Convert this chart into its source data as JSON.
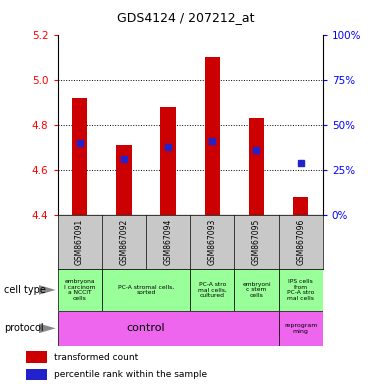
{
  "title": "GDS4124 / 207212_at",
  "samples": [
    "GSM867091",
    "GSM867092",
    "GSM867094",
    "GSM867093",
    "GSM867095",
    "GSM867096"
  ],
  "bar_tops": [
    4.92,
    4.71,
    4.88,
    5.1,
    4.83,
    4.48
  ],
  "bar_bottom": 4.4,
  "blue_y": [
    4.72,
    4.65,
    4.7,
    4.73,
    4.69,
    4.63
  ],
  "ylim_left": [
    4.4,
    5.2
  ],
  "ylim_right": [
    0,
    100
  ],
  "yticks_left": [
    4.4,
    4.6,
    4.8,
    5.0,
    5.2
  ],
  "yticks_right": [
    0,
    25,
    50,
    75,
    100
  ],
  "bar_color": "#cc0000",
  "blue_color": "#2222cc",
  "cell_type_data": [
    {
      "start": 0,
      "end": 1,
      "label": "embryona\nl carcinom\na NCCIT\ncells",
      "color": "#99ff99"
    },
    {
      "start": 1,
      "end": 3,
      "label": "PC-A stromal cells,\nsorted",
      "color": "#99ff99"
    },
    {
      "start": 3,
      "end": 4,
      "label": "PC-A stro\nmal cells,\ncultured",
      "color": "#99ff99"
    },
    {
      "start": 4,
      "end": 5,
      "label": "embryoni\nc stem\ncells",
      "color": "#99ff99"
    },
    {
      "start": 5,
      "end": 6,
      "label": "IPS cells\nfrom\nPC-A stro\nmal cells",
      "color": "#99ff99"
    }
  ],
  "protocol_control_color": "#ee66ee",
  "protocol_reprog_color": "#ee66ee",
  "sample_bg_color": "#c8c8c8",
  "bar_width": 0.35,
  "legend_labels": [
    "transformed count",
    "percentile rank within the sample"
  ]
}
